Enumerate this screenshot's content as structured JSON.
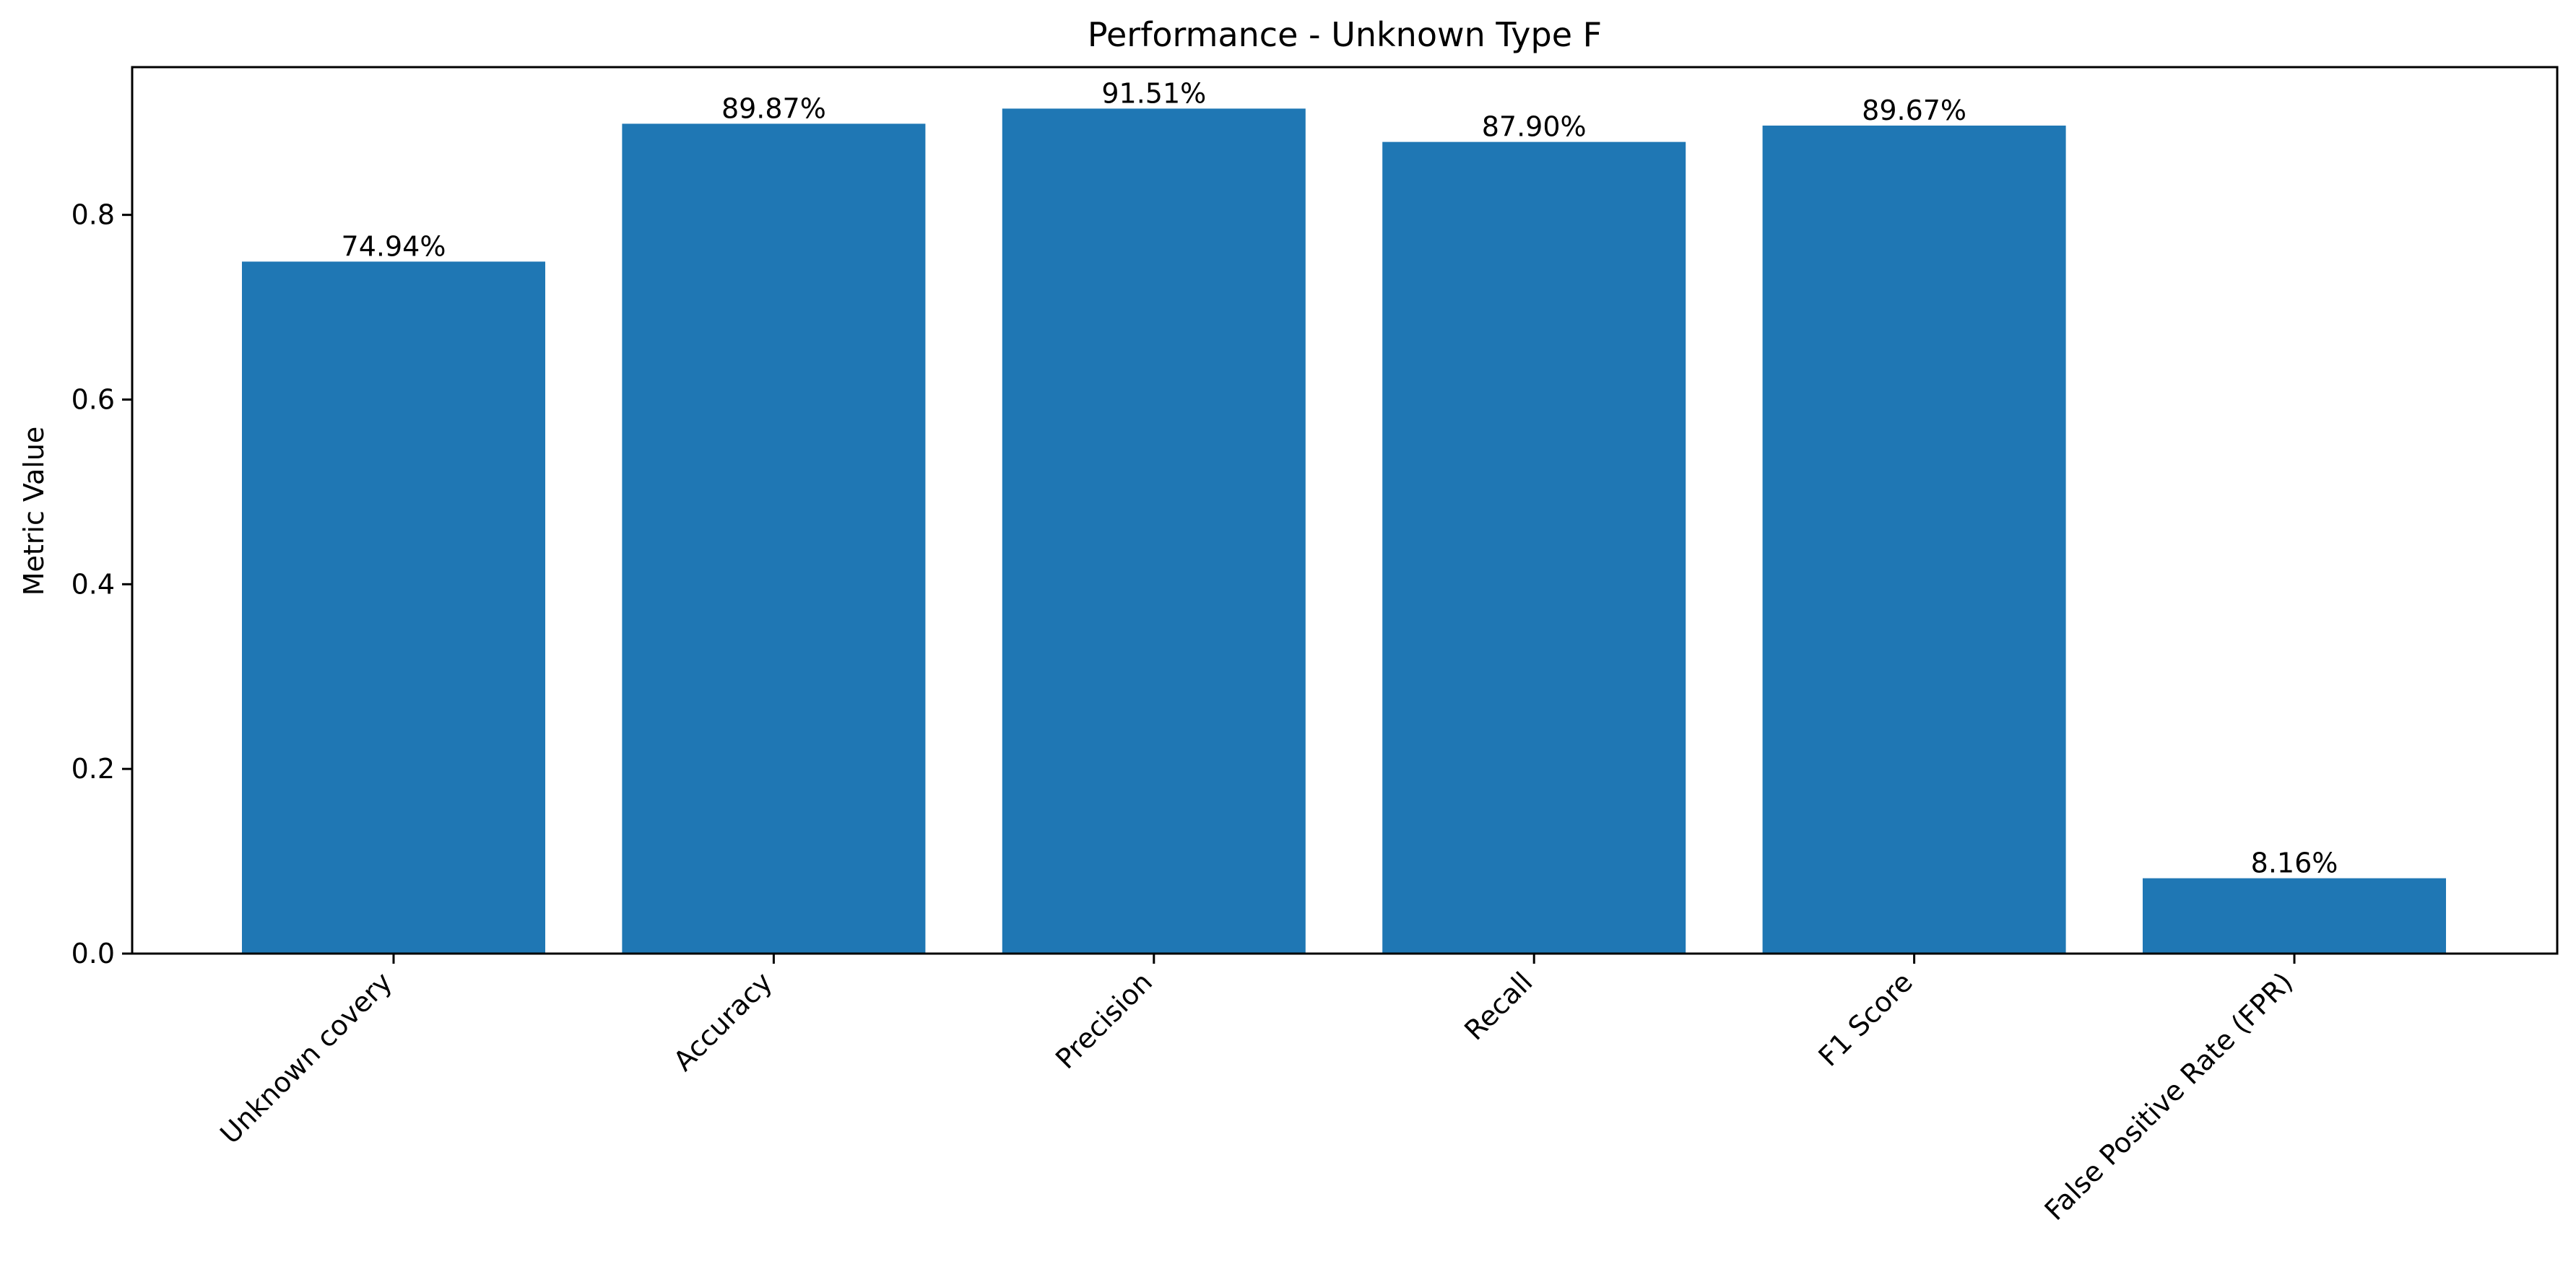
{
  "chart_data": {
    "type": "bar",
    "title": "Performance - Unknown Type F",
    "xlabel": "",
    "ylabel": "Metric Value",
    "ylim": [
      0,
      0.96
    ],
    "yticks": [
      0.0,
      0.2,
      0.4,
      0.6,
      0.8
    ],
    "ytick_labels": [
      "0.0",
      "0.2",
      "0.4",
      "0.6",
      "0.8"
    ],
    "categories": [
      "Unknown covery",
      "Accuracy",
      "Precision",
      "Recall",
      "F1 Score",
      "False Positive Rate (FPR)"
    ],
    "values": [
      0.7494,
      0.8987,
      0.9151,
      0.879,
      0.8967,
      0.0816
    ],
    "value_labels": [
      "74.94%",
      "89.87%",
      "91.51%",
      "87.90%",
      "89.67%",
      "8.16%"
    ],
    "bar_color": "#1f77b4",
    "grid": false,
    "legend": "none"
  }
}
